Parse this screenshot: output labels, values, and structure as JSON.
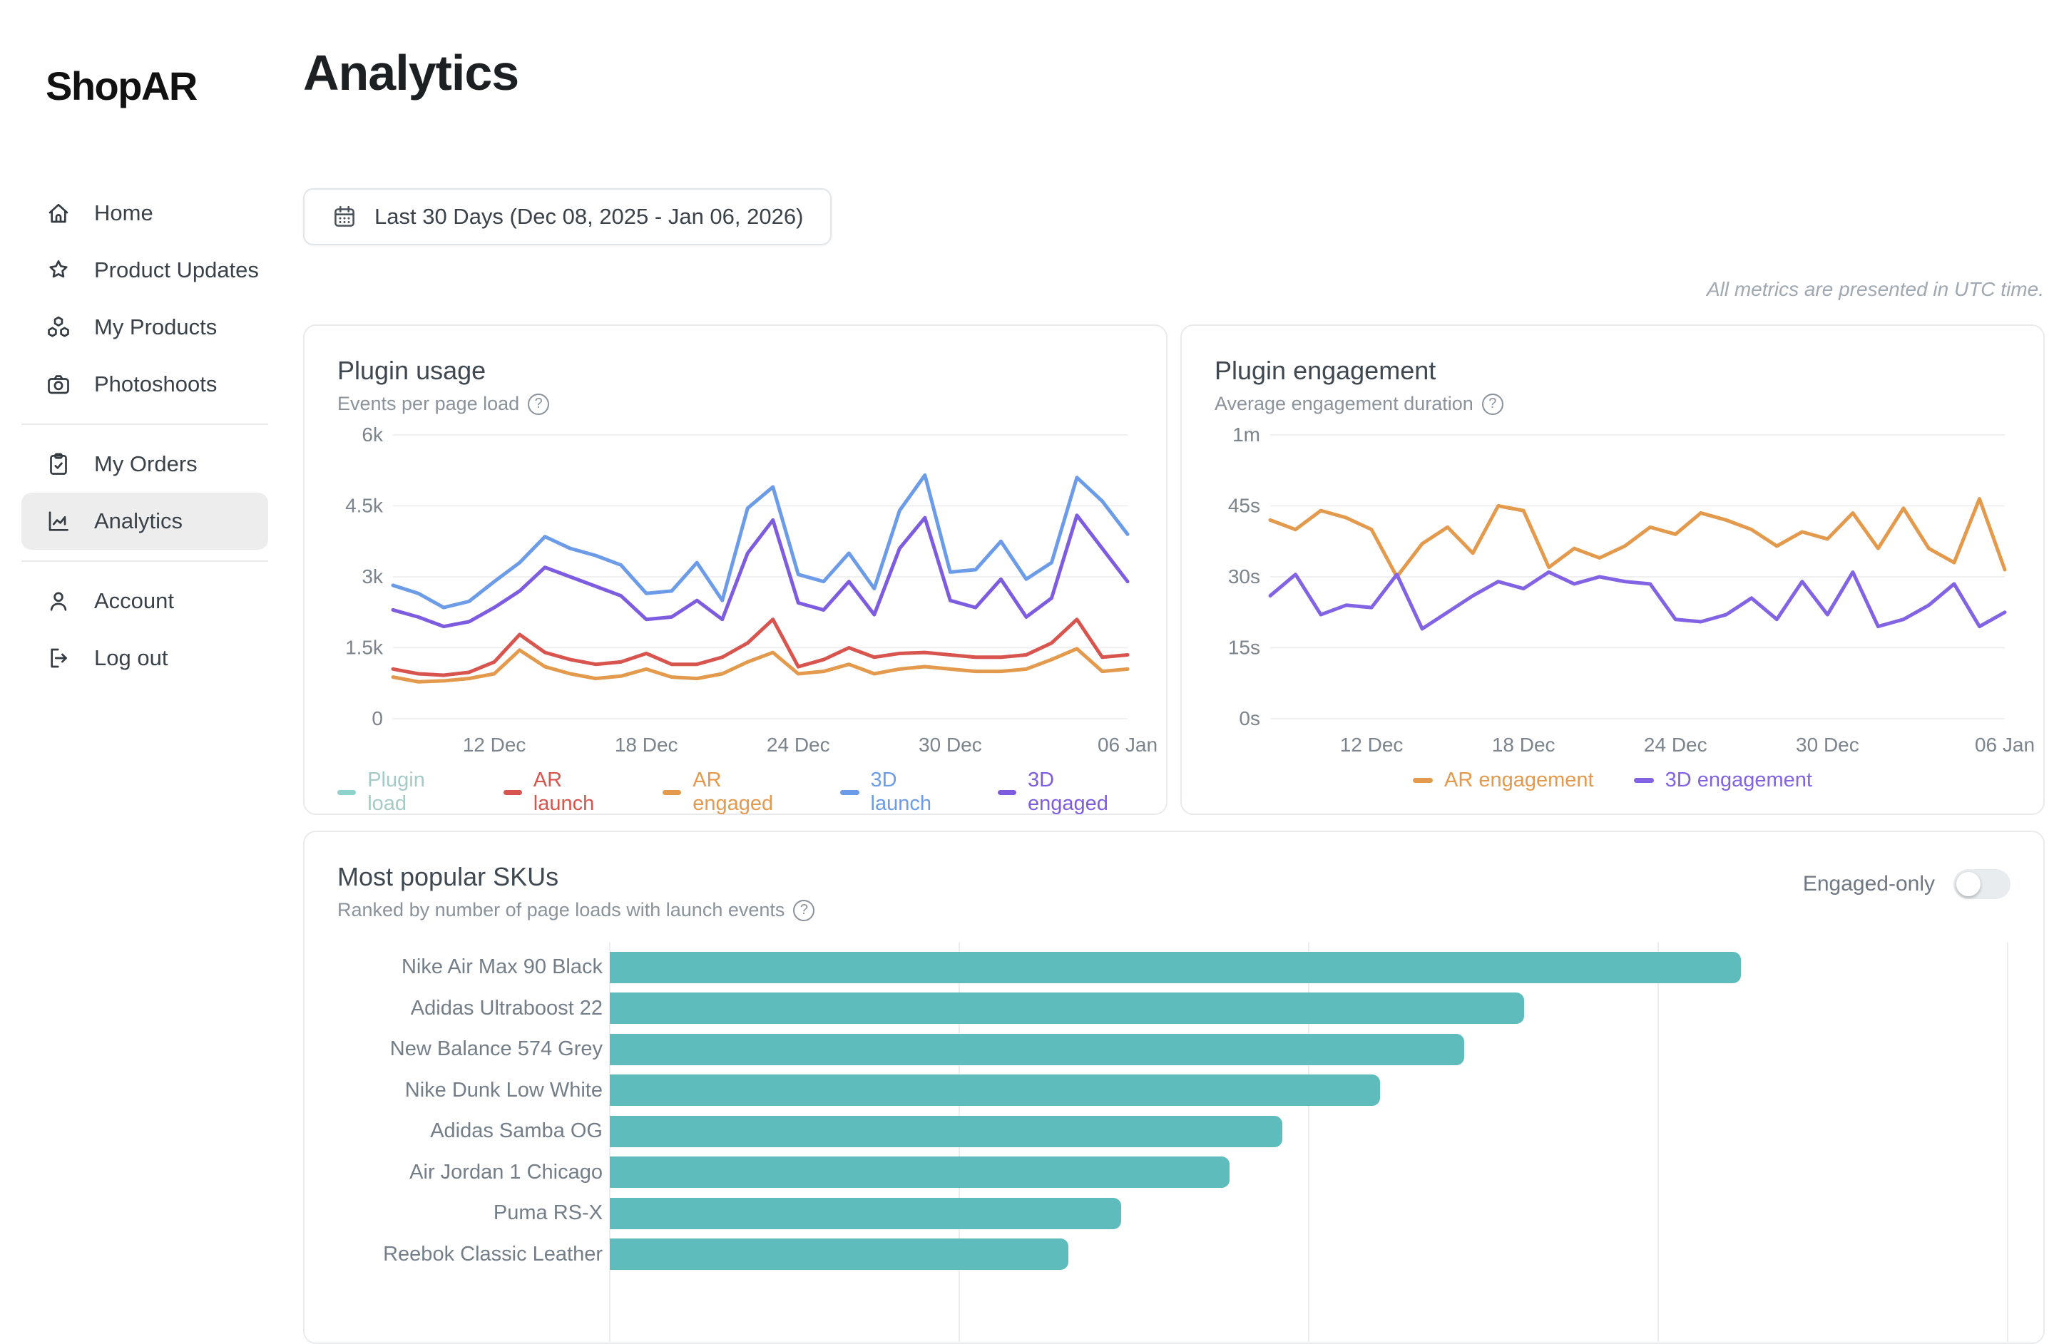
{
  "sidebar": {
    "logo": "ShopAR",
    "items": [
      {
        "id": "home",
        "label": "Home",
        "icon": "home-icon",
        "active": false,
        "divider_after": false
      },
      {
        "id": "product-updates",
        "label": "Product Updates",
        "icon": "star-icon",
        "active": false,
        "divider_after": false
      },
      {
        "id": "my-products",
        "label": "My Products",
        "icon": "cubes-icon",
        "active": false,
        "divider_after": false
      },
      {
        "id": "photoshoots",
        "label": "Photoshoots",
        "icon": "camera-icon",
        "active": false,
        "divider_after": true
      },
      {
        "id": "my-orders",
        "label": "My Orders",
        "icon": "clipboard-icon",
        "active": false,
        "divider_after": false
      },
      {
        "id": "analytics",
        "label": "Analytics",
        "icon": "chart-icon",
        "active": true,
        "divider_after": true
      },
      {
        "id": "account",
        "label": "Account",
        "icon": "user-icon",
        "active": false,
        "divider_after": false
      },
      {
        "id": "log-out",
        "label": "Log out",
        "icon": "logout-icon",
        "active": false,
        "divider_after": false
      }
    ]
  },
  "header": {
    "title": "Analytics",
    "date_range_label": "Last 30 Days (Dec 08, 2025 - Jan 06, 2026)",
    "utc_note": "All metrics are presented in UTC time."
  },
  "colors": {
    "accent_teal": "#5fbcbc",
    "card_border": "#e8eaec",
    "active_item_bg": "#ededee",
    "gridline": "#ececee"
  },
  "chart_data": [
    {
      "id": "plugin-usage",
      "type": "line",
      "title": "Plugin usage",
      "subtitle": "Events per page load",
      "x_start": "Dec 08, 2025",
      "x_end": "Jan 06, 2026",
      "n_points": 30,
      "x_ticks": [
        {
          "day": 4,
          "label": "12 Dec"
        },
        {
          "day": 10,
          "label": "18 Dec"
        },
        {
          "day": 16,
          "label": "24 Dec"
        },
        {
          "day": 22,
          "label": "30 Dec"
        },
        {
          "day": 29,
          "label": "06 Jan"
        }
      ],
      "ylim": [
        0,
        6000
      ],
      "y_ticks": [
        {
          "v": 0,
          "label": "0"
        },
        {
          "v": 1500,
          "label": "1.5k"
        },
        {
          "v": 3000,
          "label": "3k"
        },
        {
          "v": 4500,
          "label": "4.5k"
        },
        {
          "v": 6000,
          "label": "6k"
        }
      ],
      "grid": true,
      "legend_position": "bottom",
      "legend_disabled_item": {
        "label": "Plugin load",
        "color": "#8fd2cb",
        "text_color": "#a5cbc7"
      },
      "series": [
        {
          "name": "AR launch",
          "color": "#d8544e",
          "values": [
            1050,
            950,
            920,
            980,
            1200,
            1780,
            1400,
            1250,
            1150,
            1200,
            1380,
            1150,
            1150,
            1300,
            1600,
            2100,
            1100,
            1250,
            1500,
            1300,
            1380,
            1400,
            1350,
            1300,
            1300,
            1350,
            1600,
            2100,
            1300,
            1350
          ]
        },
        {
          "name": "AR engaged",
          "color": "#e39a4d",
          "values": [
            880,
            780,
            800,
            850,
            950,
            1450,
            1100,
            950,
            850,
            900,
            1050,
            880,
            850,
            950,
            1200,
            1400,
            950,
            1000,
            1150,
            950,
            1050,
            1100,
            1050,
            1000,
            1000,
            1050,
            1250,
            1480,
            1000,
            1050
          ]
        },
        {
          "name": "3D launch",
          "color": "#6c9ce8",
          "values": [
            2820,
            2650,
            2350,
            2480,
            2900,
            3300,
            3850,
            3600,
            3450,
            3250,
            2650,
            2700,
            3300,
            2500,
            4450,
            4900,
            3050,
            2900,
            3500,
            2750,
            4400,
            5150,
            3100,
            3150,
            3750,
            2950,
            3300,
            5100,
            4600,
            3900
          ]
        },
        {
          "name": "3D engaged",
          "color": "#7e5ce0",
          "values": [
            2300,
            2150,
            1950,
            2050,
            2350,
            2700,
            3200,
            3000,
            2800,
            2600,
            2100,
            2150,
            2500,
            2100,
            3500,
            4200,
            2450,
            2300,
            2900,
            2200,
            3600,
            4250,
            2500,
            2350,
            2950,
            2150,
            2550,
            4300,
            3600,
            2900
          ]
        }
      ]
    },
    {
      "id": "plugin-engagement",
      "type": "line",
      "title": "Plugin engagement",
      "subtitle": "Average engagement duration",
      "x_start": "Dec 08, 2025",
      "x_end": "Jan 06, 2026",
      "n_points": 30,
      "x_ticks": [
        {
          "day": 4,
          "label": "12 Dec"
        },
        {
          "day": 10,
          "label": "18 Dec"
        },
        {
          "day": 16,
          "label": "24 Dec"
        },
        {
          "day": 22,
          "label": "30 Dec"
        },
        {
          "day": 29,
          "label": "06 Jan"
        }
      ],
      "ylim": [
        0,
        60
      ],
      "y_ticks": [
        {
          "v": 0,
          "label": "0s"
        },
        {
          "v": 15,
          "label": "15s"
        },
        {
          "v": 30,
          "label": "30s"
        },
        {
          "v": 45,
          "label": "45s"
        },
        {
          "v": 60,
          "label": "1m"
        }
      ],
      "grid": true,
      "legend_position": "bottom",
      "series": [
        {
          "name": "AR engagement",
          "color": "#e39a4d",
          "values": [
            42,
            40,
            44,
            42.5,
            40,
            30,
            37,
            40.5,
            35,
            45,
            44,
            32,
            36,
            34,
            36.5,
            40.5,
            39,
            43.5,
            42,
            40,
            36.5,
            39.5,
            38,
            43.5,
            36,
            44.5,
            36,
            33,
            46.5,
            31.5
          ]
        },
        {
          "name": "3D engagement",
          "color": "#8163e3",
          "values": [
            26,
            30.5,
            22,
            24,
            23.5,
            30.5,
            19,
            22.5,
            26,
            29,
            27.5,
            31,
            28.5,
            30,
            29,
            28.5,
            21,
            20.5,
            22,
            25.5,
            21,
            29,
            22,
            31,
            19.5,
            21,
            24,
            28.5,
            19.5,
            22.5
          ]
        }
      ]
    },
    {
      "id": "most-popular-skus",
      "type": "bar",
      "title": "Most popular SKUs",
      "subtitle": "Ranked by number of page loads with launch events",
      "toggle": {
        "label": "Engaged-only",
        "state": "off"
      },
      "bar_color": "#5fbcbc",
      "orientation": "horizontal",
      "x_axis_visible": false,
      "note": "x-axis labels are cut off below the viewport; values estimated in unlabeled gridline units (4 gridline intervals span the plot)",
      "axis_max_units": 4,
      "categories": [
        "Nike Air Max 90 Black",
        "Adidas Ultraboost 22",
        "New Balance 574 Grey",
        "Nike Dunk Low White",
        "Adidas Samba OG",
        "Air Jordan 1 Chicago",
        "Puma RS-X",
        "Reebok Classic Leather"
      ],
      "values_gridline_units": [
        3.23,
        2.61,
        2.44,
        2.2,
        1.92,
        1.77,
        1.46,
        1.31
      ]
    }
  ]
}
